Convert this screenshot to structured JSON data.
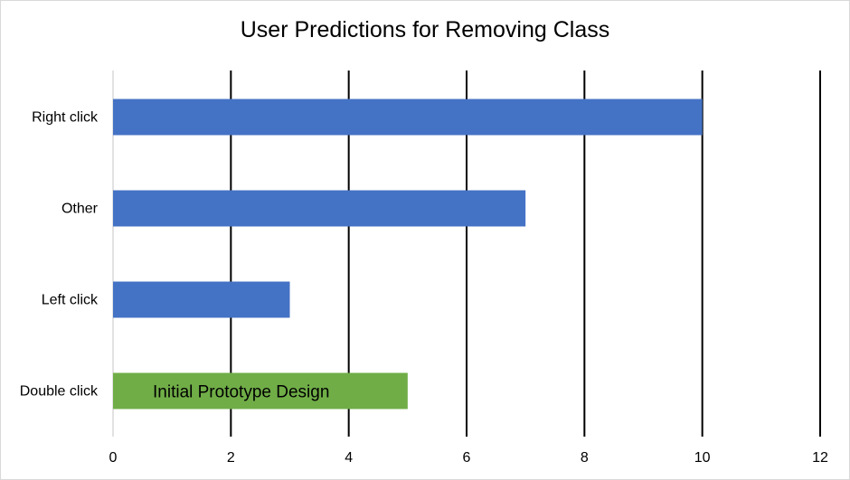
{
  "chart_data": {
    "type": "bar",
    "orientation": "horizontal",
    "title": "User Predictions for Removing Class",
    "xlabel": "",
    "ylabel": "",
    "categories": [
      "Double click",
      "Left click",
      "Other",
      "Right click"
    ],
    "values": [
      5,
      3,
      7,
      10
    ],
    "bar_colors": [
      "#70ad47",
      "#4472c4",
      "#4472c4",
      "#4472c4"
    ],
    "xlim": [
      0,
      12
    ],
    "xticks": [
      0,
      2,
      4,
      6,
      8,
      10,
      12
    ],
    "grid": true,
    "legend": "none",
    "annotations": [
      {
        "category": "Double click",
        "text": "Initial Prototype Design"
      }
    ]
  }
}
